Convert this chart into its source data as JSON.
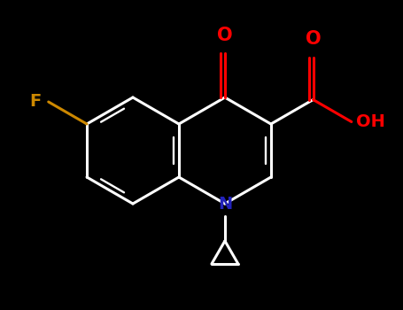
{
  "background_color": "#000000",
  "bond_color": "#ffffff",
  "atom_colors": {
    "F": "#cc8800",
    "O": "#ff0000",
    "N": "#2222bb",
    "C": "#ffffff",
    "H": "#ffffff"
  },
  "bond_width": 2.2,
  "figsize": [
    4.55,
    3.5
  ],
  "dpi": 100,
  "xlim": [
    0.0,
    4.55
  ],
  "ylim": [
    0.0,
    3.5
  ]
}
